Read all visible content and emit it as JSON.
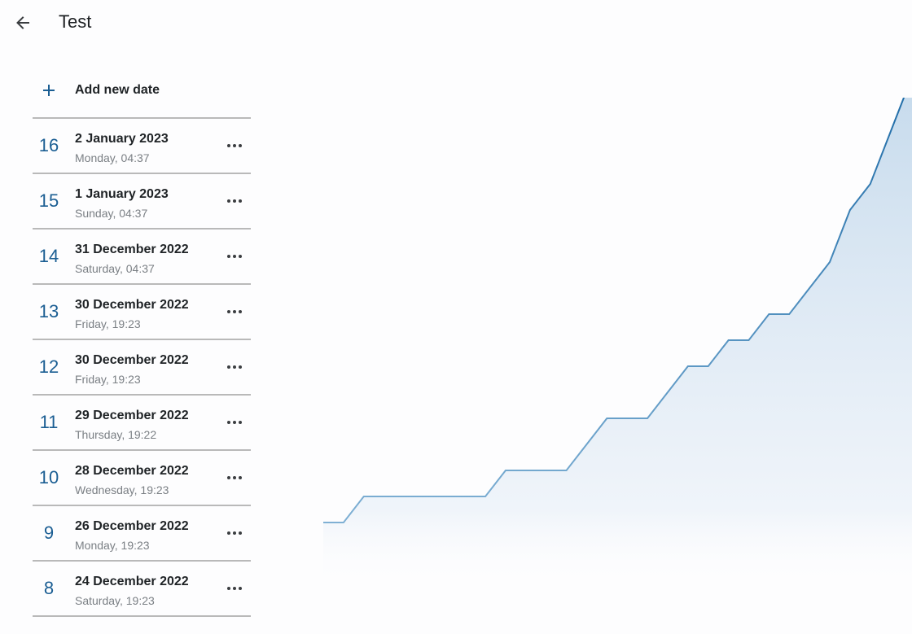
{
  "appbar": {
    "title": "Test",
    "back_icon": "arrow-back-icon"
  },
  "list": {
    "add_label": "Add new date",
    "add_icon": "plus-icon",
    "more_icon": "more-horizontal-icon",
    "entries": [
      {
        "number": "16",
        "date": "2 January 2023",
        "sub": "Monday, 04:37"
      },
      {
        "number": "15",
        "date": "1 January 2023",
        "sub": "Sunday, 04:37"
      },
      {
        "number": "14",
        "date": "31 December 2022",
        "sub": "Saturday, 04:37"
      },
      {
        "number": "13",
        "date": "30 December 2022",
        "sub": "Friday, 19:23"
      },
      {
        "number": "12",
        "date": "30 December 2022",
        "sub": "Friday, 19:23"
      },
      {
        "number": "11",
        "date": "29 December 2022",
        "sub": "Thursday, 19:22"
      },
      {
        "number": "10",
        "date": "28 December 2022",
        "sub": "Wednesday, 19:23"
      },
      {
        "number": "9",
        "date": "26 December 2022",
        "sub": "Monday, 19:23"
      },
      {
        "number": "8",
        "date": "24 December 2022",
        "sub": "Saturday, 19:23"
      }
    ]
  },
  "colors": {
    "accent": "#1b5e93",
    "line": "#1c6aa6",
    "fill": "#c9ddee",
    "divider": "#b9b9b9"
  },
  "chart_data": {
    "type": "area",
    "step": true,
    "title": "",
    "xlabel": "",
    "ylabel": "",
    "grid": false,
    "x": [
      0,
      1,
      2,
      3,
      4,
      5,
      6,
      7,
      8,
      9,
      10,
      11,
      12,
      13,
      14,
      15,
      16,
      17,
      18,
      19,
      20,
      21,
      22,
      23,
      24,
      25,
      26,
      27,
      28
    ],
    "values": [
      1,
      1,
      2,
      2,
      2,
      2,
      2,
      2,
      2,
      3,
      3,
      3,
      3,
      4,
      5,
      5,
      5,
      6,
      7,
      7,
      8,
      8,
      9,
      9,
      10,
      11,
      13,
      14,
      16
    ],
    "ylim": [
      0,
      16
    ]
  }
}
